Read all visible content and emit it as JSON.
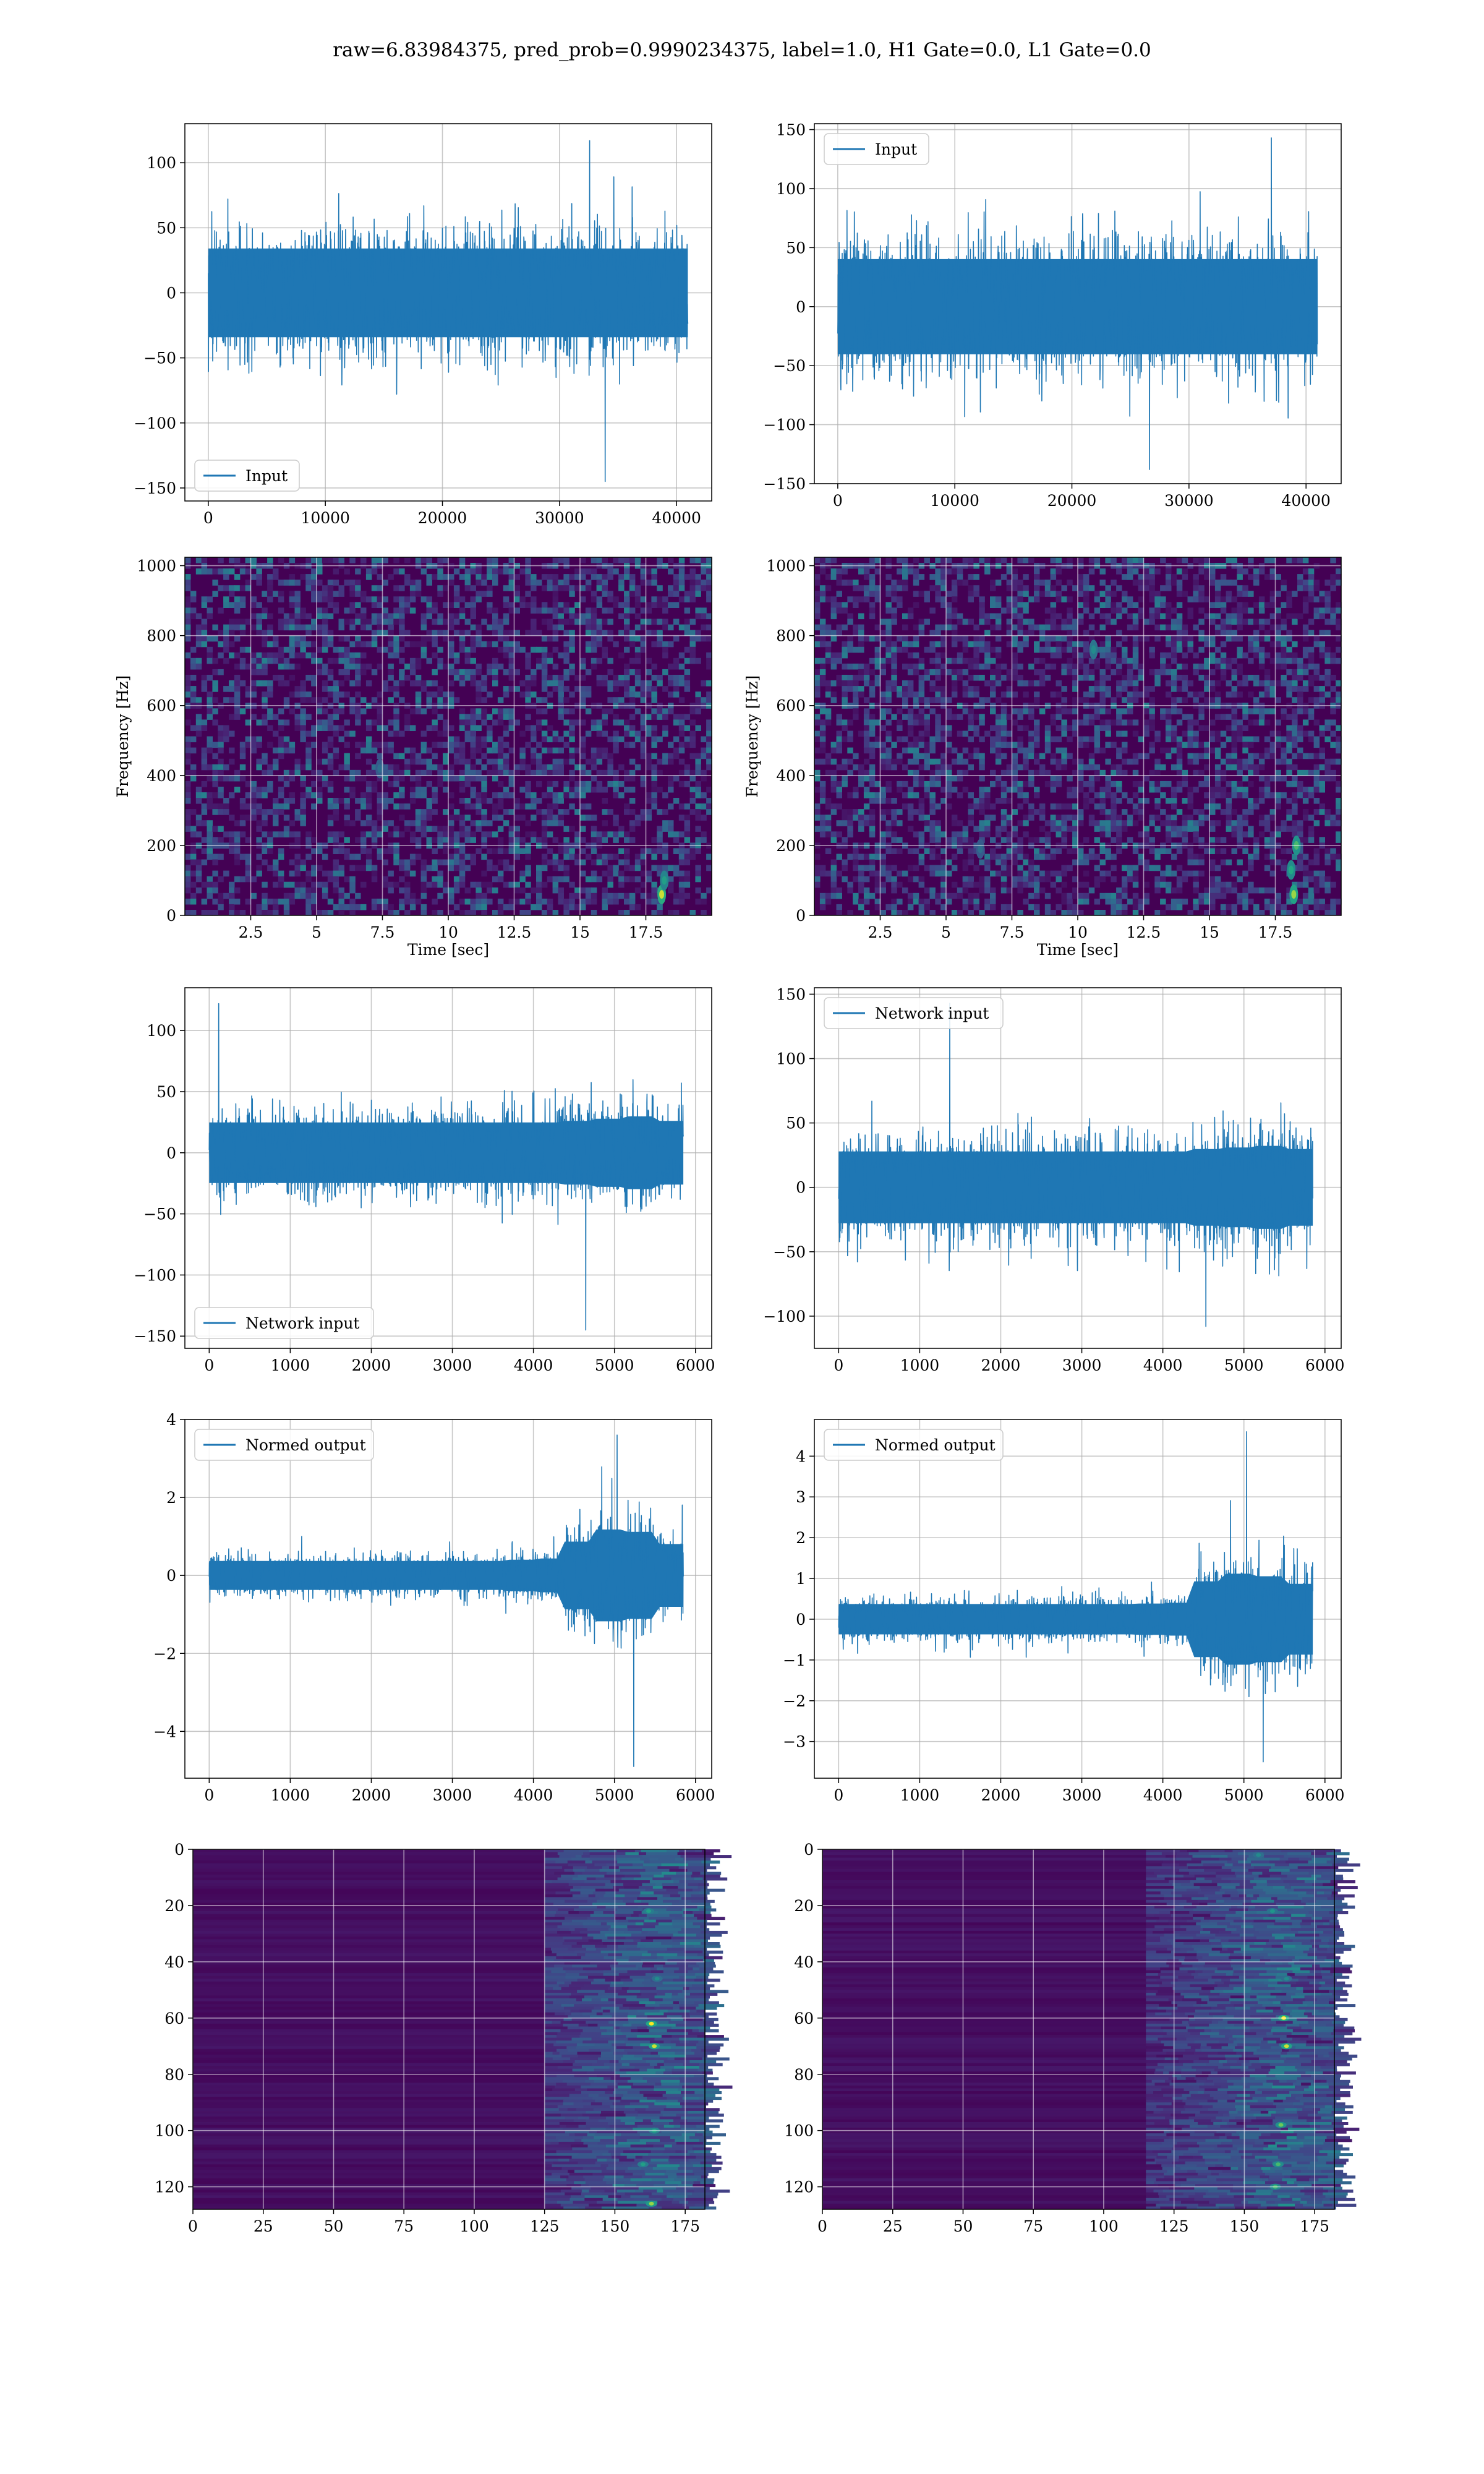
{
  "figure": {
    "title": "raw=6.83984375, pred_prob=0.9990234375, label=1.0, H1 Gate=0.0, L1 Gate=0.0"
  },
  "colors": {
    "line": "#1f77b4",
    "grid": "#b0b0b0",
    "spine": "#000000",
    "viridis_dark": "#440154",
    "viridis_mid": "#21918c",
    "viridis_bright": "#fde725"
  },
  "chart_data": [
    {
      "id": "h1-input",
      "type": "line",
      "legend": [
        "Input"
      ],
      "legend_loc": "lower-left",
      "xlim": [
        -2000,
        43000
      ],
      "ylim": [
        -160,
        130
      ],
      "xticks": [
        0,
        10000,
        20000,
        30000,
        40000
      ],
      "yticks": [
        -150,
        -100,
        -50,
        0,
        50,
        100
      ],
      "grid": true,
      "series": [
        {
          "name": "Input",
          "n_points": 40960,
          "x_range": [
            0,
            40960
          ],
          "band_envelope": [
            -55,
            55
          ],
          "spike_extremes": {
            "max": 117,
            "min": -145
          },
          "envelope_profile": [
            55,
            55,
            55,
            55,
            55,
            55,
            55,
            55,
            55,
            55,
            55,
            55,
            55,
            55,
            55,
            55
          ]
        }
      ]
    },
    {
      "id": "l1-input",
      "type": "line",
      "legend": [
        "Input"
      ],
      "legend_loc": "top-left",
      "xlim": [
        -2000,
        43000
      ],
      "ylim": [
        -150,
        155
      ],
      "xticks": [
        0,
        10000,
        20000,
        30000,
        40000
      ],
      "yticks": [
        -150,
        -100,
        -50,
        0,
        50,
        100,
        150
      ],
      "grid": true,
      "series": [
        {
          "name": "Input",
          "n_points": 40960,
          "x_range": [
            0,
            40960
          ],
          "band_envelope": [
            -65,
            65
          ],
          "spike_extremes": {
            "max": 143,
            "min": -138
          },
          "envelope_profile": [
            65,
            65,
            65,
            65,
            65,
            65,
            65,
            65,
            65,
            65,
            65,
            65,
            65,
            65,
            65,
            65
          ]
        }
      ]
    },
    {
      "id": "h1-spectrogram",
      "type": "heatmap",
      "xlabel": "Time [sec]",
      "ylabel": "Frequency [Hz]",
      "xlim": [
        0,
        20
      ],
      "ylim": [
        0,
        1024
      ],
      "xticks": [
        2.5,
        5.0,
        7.5,
        10.0,
        12.5,
        15.0,
        17.5
      ],
      "yticks": [
        0,
        200,
        400,
        600,
        800,
        1000
      ],
      "grid": true,
      "colormap": "viridis",
      "hot_spots": [
        {
          "t": 18.1,
          "f": 60,
          "level": 0.95
        },
        {
          "t": 18.2,
          "f": 100,
          "level": 0.7
        },
        {
          "t": 7.4,
          "f": 420,
          "level": 0.45
        }
      ]
    },
    {
      "id": "l1-spectrogram",
      "type": "heatmap",
      "xlabel": "Time [sec]",
      "ylabel": "Frequency [Hz]",
      "xlim": [
        0,
        20
      ],
      "ylim": [
        0,
        1024
      ],
      "xticks": [
        2.5,
        5.0,
        7.5,
        10.0,
        12.5,
        15.0,
        17.5
      ],
      "yticks": [
        0,
        200,
        400,
        600,
        800,
        1000
      ],
      "grid": true,
      "colormap": "viridis",
      "hot_spots": [
        {
          "t": 18.2,
          "f": 60,
          "level": 0.9
        },
        {
          "t": 18.3,
          "f": 200,
          "level": 0.8
        },
        {
          "t": 18.1,
          "f": 130,
          "level": 0.75
        },
        {
          "t": 10.6,
          "f": 760,
          "level": 0.6
        },
        {
          "t": 6.3,
          "f": 190,
          "level": 0.45
        }
      ]
    },
    {
      "id": "h1-network-input",
      "type": "line",
      "legend": [
        "Network input"
      ],
      "legend_loc": "lower-left",
      "xlim": [
        -300,
        6200
      ],
      "ylim": [
        -160,
        135
      ],
      "xticks": [
        0,
        1000,
        2000,
        3000,
        4000,
        5000,
        6000
      ],
      "yticks": [
        -150,
        -100,
        -50,
        0,
        50,
        100
      ],
      "grid": true,
      "series": [
        {
          "name": "Network input",
          "n_points": 5850,
          "x_range": [
            0,
            5850
          ],
          "band_envelope": [
            -40,
            40
          ],
          "spike_extremes": {
            "max": 122,
            "min": -145
          },
          "envelope_profile": [
            40,
            40,
            40,
            40,
            40,
            40,
            40,
            40,
            40,
            40,
            40,
            40,
            42,
            45,
            48,
            42
          ]
        }
      ]
    },
    {
      "id": "l1-network-input",
      "type": "line",
      "legend": [
        "Network input"
      ],
      "legend_loc": "top-left",
      "xlim": [
        -300,
        6200
      ],
      "ylim": [
        -125,
        155
      ],
      "xticks": [
        0,
        1000,
        2000,
        3000,
        4000,
        5000,
        6000
      ],
      "yticks": [
        -100,
        -50,
        0,
        50,
        100,
        150
      ],
      "grid": true,
      "series": [
        {
          "name": "Network input",
          "n_points": 5850,
          "x_range": [
            0,
            5850
          ],
          "band_envelope": [
            -45,
            45
          ],
          "spike_extremes": {
            "max": 143,
            "min": -108
          },
          "envelope_profile": [
            45,
            45,
            45,
            45,
            45,
            45,
            45,
            45,
            45,
            45,
            45,
            45,
            48,
            50,
            52,
            48
          ]
        }
      ]
    },
    {
      "id": "h1-normed-output",
      "type": "line",
      "legend": [
        "Normed output"
      ],
      "legend_loc": "top-left",
      "xlim": [
        -300,
        6200
      ],
      "ylim": [
        -5.2,
        4.0
      ],
      "xticks": [
        0,
        1000,
        2000,
        3000,
        4000,
        5000,
        6000
      ],
      "yticks": [
        -4,
        -2,
        0,
        2,
        4
      ],
      "grid": true,
      "series": [
        {
          "name": "Normed output",
          "n_points": 5850,
          "x_range": [
            0,
            5850
          ],
          "band_envelope": [
            -0.6,
            0.6
          ],
          "spike_extremes": {
            "max": 3.6,
            "min": -4.9
          },
          "envelope_profile": [
            0.6,
            0.6,
            0.6,
            0.6,
            0.6,
            0.6,
            0.6,
            0.6,
            0.6,
            0.6,
            0.65,
            0.7,
            1.4,
            1.9,
            1.8,
            1.3
          ]
        }
      ]
    },
    {
      "id": "l1-normed-output",
      "type": "line",
      "legend": [
        "Normed output"
      ],
      "legend_loc": "top-left",
      "xlim": [
        -300,
        6200
      ],
      "ylim": [
        -3.9,
        4.9
      ],
      "xticks": [
        0,
        1000,
        2000,
        3000,
        4000,
        5000,
        6000
      ],
      "yticks": [
        -3,
        -2,
        -1,
        0,
        1,
        2,
        3,
        4
      ],
      "grid": true,
      "series": [
        {
          "name": "Normed output",
          "n_points": 5850,
          "x_range": [
            0,
            5850
          ],
          "band_envelope": [
            -0.6,
            0.6
          ],
          "spike_extremes": {
            "max": 4.6,
            "min": -3.5
          },
          "envelope_profile": [
            0.6,
            0.6,
            0.6,
            0.6,
            0.6,
            0.6,
            0.6,
            0.6,
            0.6,
            0.6,
            0.62,
            0.65,
            1.5,
            1.8,
            1.7,
            1.4
          ]
        }
      ]
    },
    {
      "id": "h1-feature-map",
      "type": "heatmap",
      "xlim": [
        0,
        182
      ],
      "ylim": [
        128,
        0
      ],
      "xticks": [
        0,
        25,
        50,
        75,
        100,
        125,
        150,
        175
      ],
      "yticks": [
        0,
        20,
        40,
        60,
        80,
        100,
        120
      ],
      "grid": true,
      "colormap": "viridis",
      "activity_onset_x": 125,
      "activity_peak_x": 163,
      "hot_spots": [
        {
          "x": 163,
          "y": 62,
          "level": 1.0
        },
        {
          "x": 164,
          "y": 70,
          "level": 0.95
        },
        {
          "x": 163,
          "y": 126,
          "level": 0.9
        },
        {
          "x": 162,
          "y": 22,
          "level": 0.7
        },
        {
          "x": 164,
          "y": 100,
          "level": 0.75
        },
        {
          "x": 160,
          "y": 112,
          "level": 0.7
        },
        {
          "x": 165,
          "y": 46,
          "level": 0.6
        }
      ]
    },
    {
      "id": "l1-feature-map",
      "type": "heatmap",
      "xlim": [
        0,
        182
      ],
      "ylim": [
        128,
        0
      ],
      "xticks": [
        0,
        25,
        50,
        75,
        100,
        125,
        150,
        175
      ],
      "yticks": [
        0,
        20,
        40,
        60,
        80,
        100,
        120
      ],
      "grid": true,
      "colormap": "viridis",
      "activity_onset_x": 115,
      "activity_peak_x": 162,
      "hot_spots": [
        {
          "x": 164,
          "y": 60,
          "level": 1.0
        },
        {
          "x": 165,
          "y": 70,
          "level": 0.95
        },
        {
          "x": 163,
          "y": 98,
          "level": 0.85
        },
        {
          "x": 162,
          "y": 112,
          "level": 0.8
        },
        {
          "x": 161,
          "y": 120,
          "level": 0.8
        },
        {
          "x": 155,
          "y": 2,
          "level": 0.6
        },
        {
          "x": 160,
          "y": 22,
          "level": 0.65
        },
        {
          "x": 165,
          "y": 46,
          "level": 0.6
        }
      ]
    }
  ]
}
